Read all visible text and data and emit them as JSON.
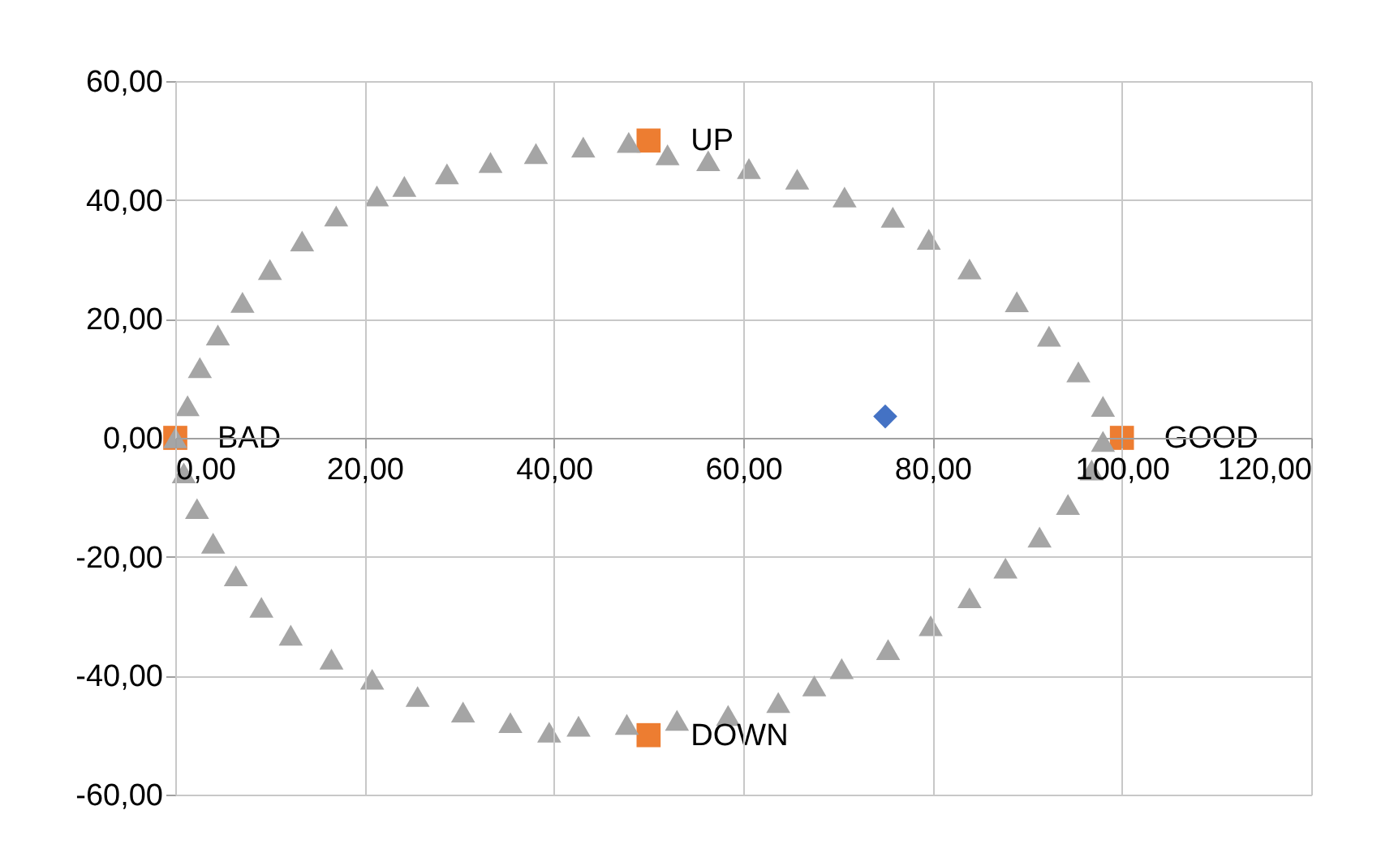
{
  "chart_data": {
    "type": "scatter",
    "xlim": [
      0,
      120
    ],
    "ylim": [
      -60,
      60
    ],
    "xticks": [
      {
        "value": 0,
        "label": "0,00"
      },
      {
        "value": 20,
        "label": "20,00"
      },
      {
        "value": 40,
        "label": "40,00"
      },
      {
        "value": 60,
        "label": "60,00"
      },
      {
        "value": 80,
        "label": "80,00"
      },
      {
        "value": 100,
        "label": "100,00"
      },
      {
        "value": 120,
        "label": "120,00"
      }
    ],
    "yticks": [
      {
        "value": -60,
        "label": "-60,00"
      },
      {
        "value": -40,
        "label": "-40,00"
      },
      {
        "value": -20,
        "label": "-20,00"
      },
      {
        "value": 0,
        "label": "0,00"
      },
      {
        "value": 20,
        "label": "20,00"
      },
      {
        "value": 40,
        "label": "40,00"
      },
      {
        "value": 60,
        "label": "60,00"
      }
    ],
    "grid": true,
    "series": [
      {
        "color": "#a5a5a5",
        "marker": "triangle",
        "x": [
          0,
          1.3,
          2.6,
          4.5,
          7.1,
          10.0,
          13.4,
          17.0,
          21.3,
          24.2,
          28.7,
          33.3,
          38.1,
          43.1,
          47.9,
          52.0,
          56.3,
          60.6,
          65.7,
          70.7,
          75.8,
          79.6,
          83.9,
          88.9,
          92.3,
          95.4,
          98.0,
          98.0,
          0.9,
          2.3,
          4.0,
          6.4,
          9.1,
          12.2,
          16.5,
          20.8,
          25.6,
          30.4,
          35.4,
          39.5,
          42.6,
          47.7,
          53.0,
          58.4,
          63.7,
          67.5,
          70.4,
          75.3,
          79.8,
          83.9,
          87.7,
          91.3,
          94.3,
          96.8
        ],
        "values": [
          0,
          5.4,
          11.8,
          17.3,
          22.8,
          28.3,
          33.1,
          37.3,
          40.7,
          42.3,
          44.4,
          46.3,
          47.8,
          48.9,
          49.7,
          47.6,
          46.6,
          45.3,
          43.5,
          40.5,
          37.1,
          33.4,
          28.4,
          22.9,
          17.1,
          11.1,
          5.3,
          -0.6,
          -5.9,
          -11.9,
          -17.7,
          -23.2,
          -28.5,
          -33.2,
          -37.2,
          -40.6,
          -43.5,
          -46.1,
          -47.9,
          -49.5,
          -48.5,
          -48.2,
          -47.5,
          -46.7,
          -44.5,
          -41.7,
          -38.8,
          -35.6,
          -31.6,
          -26.9,
          -21.9,
          -16.7,
          -11.2,
          -5.4
        ]
      },
      {
        "color": "#ed7d31",
        "marker": "square",
        "x": [
          0,
          50,
          100,
          50
        ],
        "values": [
          0,
          50,
          0,
          -50
        ]
      },
      {
        "color": "#4472c4",
        "marker": "diamond",
        "x": [
          75
        ],
        "values": [
          3.6
        ]
      }
    ],
    "annotations": [
      {
        "text": "BAD",
        "x": 0,
        "y": 0
      },
      {
        "text": "UP",
        "x": 50,
        "y": 50
      },
      {
        "text": "GOOD",
        "x": 100,
        "y": 0
      },
      {
        "text": "DOWN",
        "x": 50,
        "y": -50
      }
    ]
  }
}
